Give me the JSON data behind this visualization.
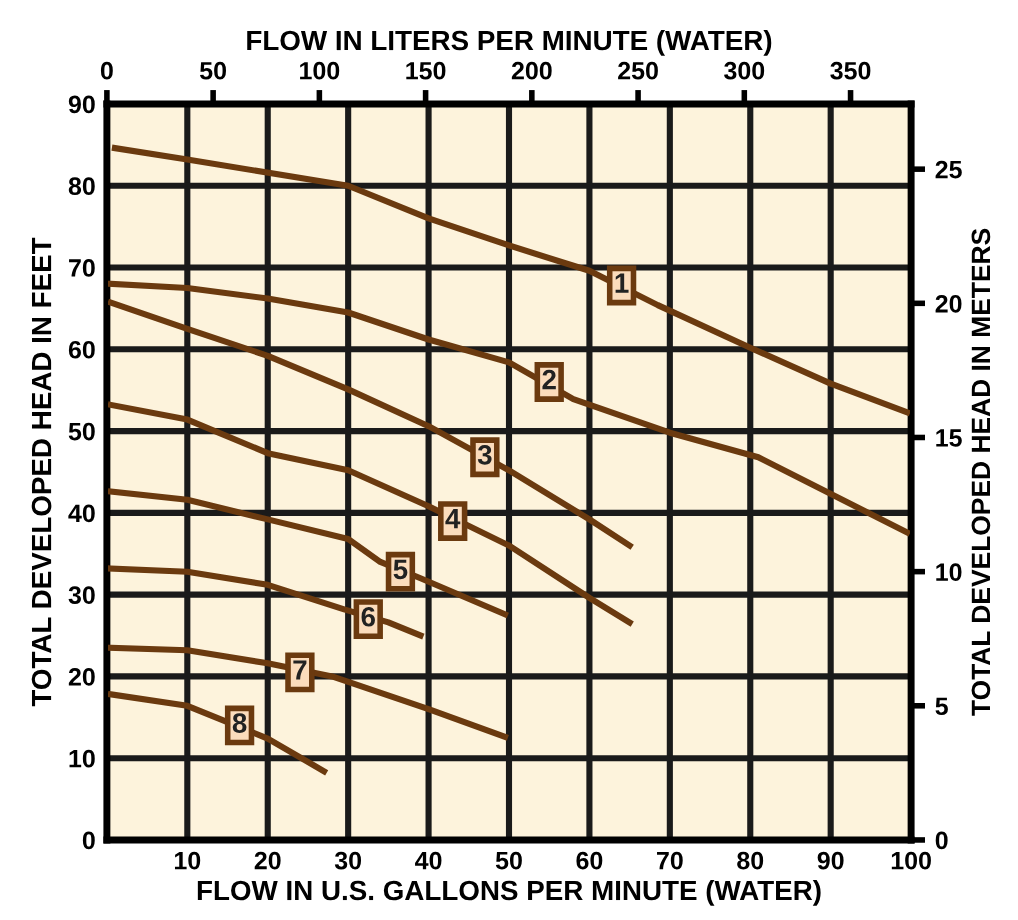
{
  "chart_data": {
    "type": "line",
    "xlabel": "FLOW IN U.S. GALLONS PER MINUTE (WATER)",
    "ylabel": "TOTAL DEVELOPED HEAD IN FEET",
    "y2label": "TOTAL DEVELOPED HEAD IN METERS",
    "x2label": "FLOW IN LITERS PER MINUTE (WATER)",
    "xlim": [
      0,
      100
    ],
    "xticks": [
      10,
      20,
      30,
      40,
      50,
      60,
      70,
      80,
      90,
      100
    ],
    "ylim": [
      0,
      90
    ],
    "yticks": [
      0,
      10,
      20,
      30,
      40,
      50,
      60,
      70,
      80,
      90
    ],
    "y2lim": [
      0,
      27.43
    ],
    "y2ticks": [
      0,
      5,
      10,
      15,
      20,
      25
    ],
    "x2lim": [
      0,
      378.5
    ],
    "x2ticks": [
      0,
      50,
      100,
      150,
      200,
      250,
      300,
      350
    ],
    "grid": true,
    "marker": "none",
    "line_style": "solid",
    "legend": false,
    "series": [
      {
        "color": "#6b3a0f",
        "x": [
          1,
          10,
          30,
          40,
          50,
          60,
          68.5,
          80,
          90,
          99.5
        ],
        "values": [
          84.6,
          83.2,
          80,
          76,
          72.7,
          69.6,
          65.4,
          60.2,
          55.8,
          52.3
        ]
      },
      {
        "color": "#6b3a0f",
        "x": [
          0.5,
          10,
          20,
          30,
          40,
          50,
          58,
          70,
          81,
          99.5
        ],
        "values": [
          68,
          67.5,
          66.2,
          64.5,
          61.2,
          58.4,
          53.9,
          49.8,
          46.8,
          37.6
        ]
      },
      {
        "color": "#6b3a0f",
        "x": [
          0.5,
          10,
          20,
          30,
          40,
          50,
          60,
          65
        ],
        "values": [
          65.7,
          62.5,
          59.2,
          55.1,
          50.6,
          45.2,
          39.2,
          36
        ]
      },
      {
        "color": "#6b3a0f",
        "x": [
          0.5,
          10,
          20,
          30,
          40,
          50,
          60,
          65
        ],
        "values": [
          53.2,
          51.4,
          47.3,
          45.2,
          40.8,
          36,
          29.6,
          26.6
        ]
      },
      {
        "color": "#6b3a0f",
        "x": [
          0.5,
          10,
          20,
          30,
          34,
          39,
          49.5
        ],
        "values": [
          42.6,
          41.6,
          39.2,
          36.8,
          34,
          32,
          27.6
        ]
      },
      {
        "color": "#6b3a0f",
        "x": [
          0.5,
          10,
          20,
          29.5,
          35,
          39
        ],
        "values": [
          33.2,
          32.8,
          31.2,
          28.2,
          26.6,
          25
        ]
      },
      {
        "color": "#6b3a0f",
        "x": [
          0.5,
          10,
          20,
          28,
          40,
          49.5
        ],
        "values": [
          23.5,
          23.2,
          21.6,
          20,
          16,
          12.6
        ]
      },
      {
        "color": "#6b3a0f",
        "x": [
          0.5,
          10,
          14,
          20,
          27
        ],
        "values": [
          17.8,
          16.4,
          14.8,
          12.4,
          8.4
        ]
      }
    ],
    "annotations": [
      {
        "text": "1",
        "x": 64,
        "y": 67.8
      },
      {
        "text": "2",
        "x": 55,
        "y": 56
      },
      {
        "text": "3",
        "x": 47,
        "y": 46.8
      },
      {
        "text": "4",
        "x": 43,
        "y": 39
      },
      {
        "text": "5",
        "x": 36.5,
        "y": 32.8
      },
      {
        "text": "6",
        "x": 32.5,
        "y": 27
      },
      {
        "text": "7",
        "x": 24,
        "y": 20.5
      },
      {
        "text": "8",
        "x": 16.5,
        "y": 14
      }
    ]
  }
}
